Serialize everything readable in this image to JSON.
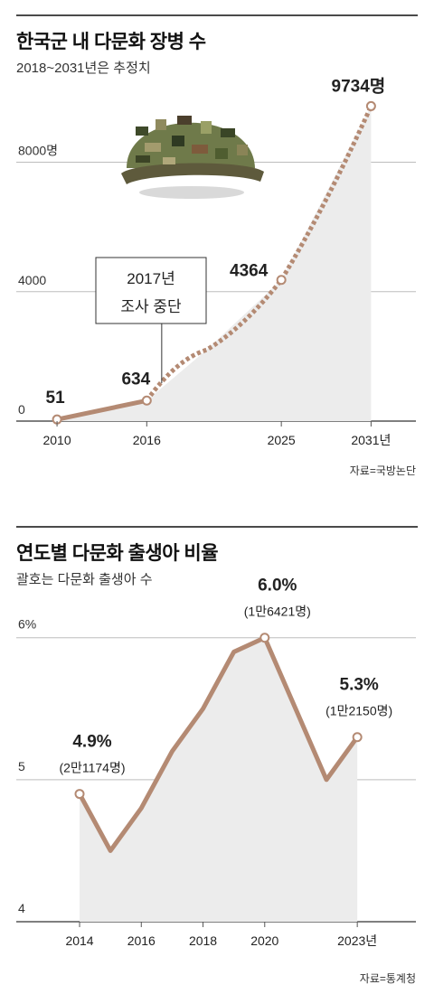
{
  "chart_data": [
    {
      "type": "line",
      "title": "한국군 내 다문화 장병 수",
      "subtitle": "2018~2031년은 추정치",
      "source": "자료=국방논단",
      "x": [
        2010,
        2016,
        2020,
        2025,
        2031
      ],
      "values": [
        51,
        634,
        2200,
        4364,
        9734
      ],
      "point_labels": [
        "51",
        "634",
        "",
        "4364",
        "9734명"
      ],
      "estimated_from": 2016,
      "xticks": [
        "2010",
        "2016",
        "2025",
        "2031년"
      ],
      "xtick_values": [
        2010,
        2016,
        2025,
        2031
      ],
      "yticks": [
        "0",
        "4000",
        "8000명"
      ],
      "ytick_values": [
        0,
        4000,
        8000
      ],
      "ylim": [
        0,
        10500
      ],
      "xlim": [
        2008,
        2034
      ],
      "annotation": {
        "line1": "2017년",
        "line2": "조사 중단",
        "x": 2017
      },
      "grid": true,
      "colors": {
        "line": "#b48a73",
        "area": "#ececec",
        "grid": "#bdbdbd"
      },
      "icon": "military-helmet-icon"
    },
    {
      "type": "line",
      "title": "연도별 다문화 출생아 비율",
      "subtitle": "괄호는 다문화 출생아 수",
      "source": "자료=통계청",
      "x": [
        2014,
        2015,
        2016,
        2017,
        2018,
        2019,
        2020,
        2021,
        2022,
        2023
      ],
      "values": [
        4.9,
        4.5,
        4.8,
        5.2,
        5.5,
        5.9,
        6.0,
        5.5,
        5.0,
        5.3
      ],
      "point_labels": [
        {
          "x": 2014,
          "value": "4.9%",
          "count": "(2만1174명)"
        },
        {
          "x": 2020,
          "value": "6.0%",
          "count": "(1만6421명)"
        },
        {
          "x": 2023,
          "value": "5.3%",
          "count": "(1만2150명)"
        }
      ],
      "xticks": [
        "2014",
        "2016",
        "2018",
        "2020",
        "2023년"
      ],
      "xtick_values": [
        2014,
        2016,
        2018,
        2020,
        2023
      ],
      "yticks": [
        "4",
        "5",
        "6%"
      ],
      "ytick_values": [
        4,
        5,
        6
      ],
      "ylim": [
        4,
        6.1
      ],
      "xlim": [
        2012.3,
        2024.9
      ],
      "grid": true,
      "colors": {
        "line": "#b48a73",
        "area": "#ececec",
        "grid": "#bdbdbd"
      }
    }
  ]
}
